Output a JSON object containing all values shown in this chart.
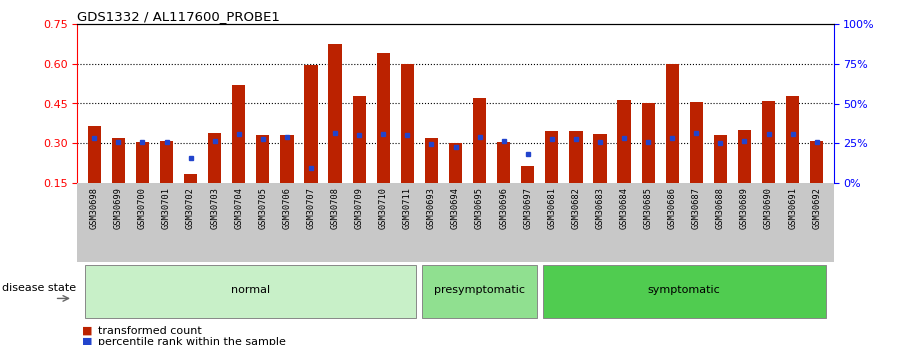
{
  "title": "GDS1332 / AL117600_PROBE1",
  "samples": [
    "GSM30698",
    "GSM30699",
    "GSM30700",
    "GSM30701",
    "GSM30702",
    "GSM30703",
    "GSM30704",
    "GSM30705",
    "GSM30706",
    "GSM30707",
    "GSM30708",
    "GSM30709",
    "GSM30710",
    "GSM30711",
    "GSM30693",
    "GSM30694",
    "GSM30695",
    "GSM30696",
    "GSM30697",
    "GSM30681",
    "GSM30682",
    "GSM30683",
    "GSM30684",
    "GSM30685",
    "GSM30686",
    "GSM30687",
    "GSM30688",
    "GSM30689",
    "GSM30690",
    "GSM30691",
    "GSM30692"
  ],
  "bar_heights": [
    0.365,
    0.318,
    0.305,
    0.307,
    0.185,
    0.34,
    0.52,
    0.33,
    0.33,
    0.595,
    0.675,
    0.48,
    0.64,
    0.6,
    0.32,
    0.3,
    0.47,
    0.305,
    0.215,
    0.345,
    0.345,
    0.335,
    0.465,
    0.45,
    0.6,
    0.455,
    0.33,
    0.35,
    0.46,
    0.48,
    0.31
  ],
  "blue_markers": [
    0.32,
    0.305,
    0.303,
    0.305,
    0.245,
    0.31,
    0.335,
    0.315,
    0.325,
    0.205,
    0.34,
    0.33,
    0.335,
    0.33,
    0.295,
    0.285,
    0.325,
    0.31,
    0.26,
    0.315,
    0.315,
    0.305,
    0.32,
    0.305,
    0.32,
    0.34,
    0.3,
    0.31,
    0.335,
    0.335,
    0.305
  ],
  "groups": [
    {
      "label": "normal",
      "start": 0,
      "end": 13,
      "color": "#c8f0c8"
    },
    {
      "label": "presymptomatic",
      "start": 14,
      "end": 18,
      "color": "#90e090"
    },
    {
      "label": "symptomatic",
      "start": 19,
      "end": 30,
      "color": "#50cc50"
    }
  ],
  "ylim_left": [
    0.15,
    0.75
  ],
  "ylim_right": [
    0,
    100
  ],
  "yticks_left": [
    0.15,
    0.3,
    0.45,
    0.6,
    0.75
  ],
  "yticks_right": [
    0,
    25,
    50,
    75,
    100
  ],
  "bar_color": "#bb2200",
  "marker_color": "#2244cc",
  "bar_width": 0.55,
  "background_color": "#ffffff",
  "disease_state_label": "disease state",
  "legend_items": [
    "transformed count",
    "percentile rank within the sample"
  ],
  "gridlines": [
    0.3,
    0.45,
    0.6
  ]
}
